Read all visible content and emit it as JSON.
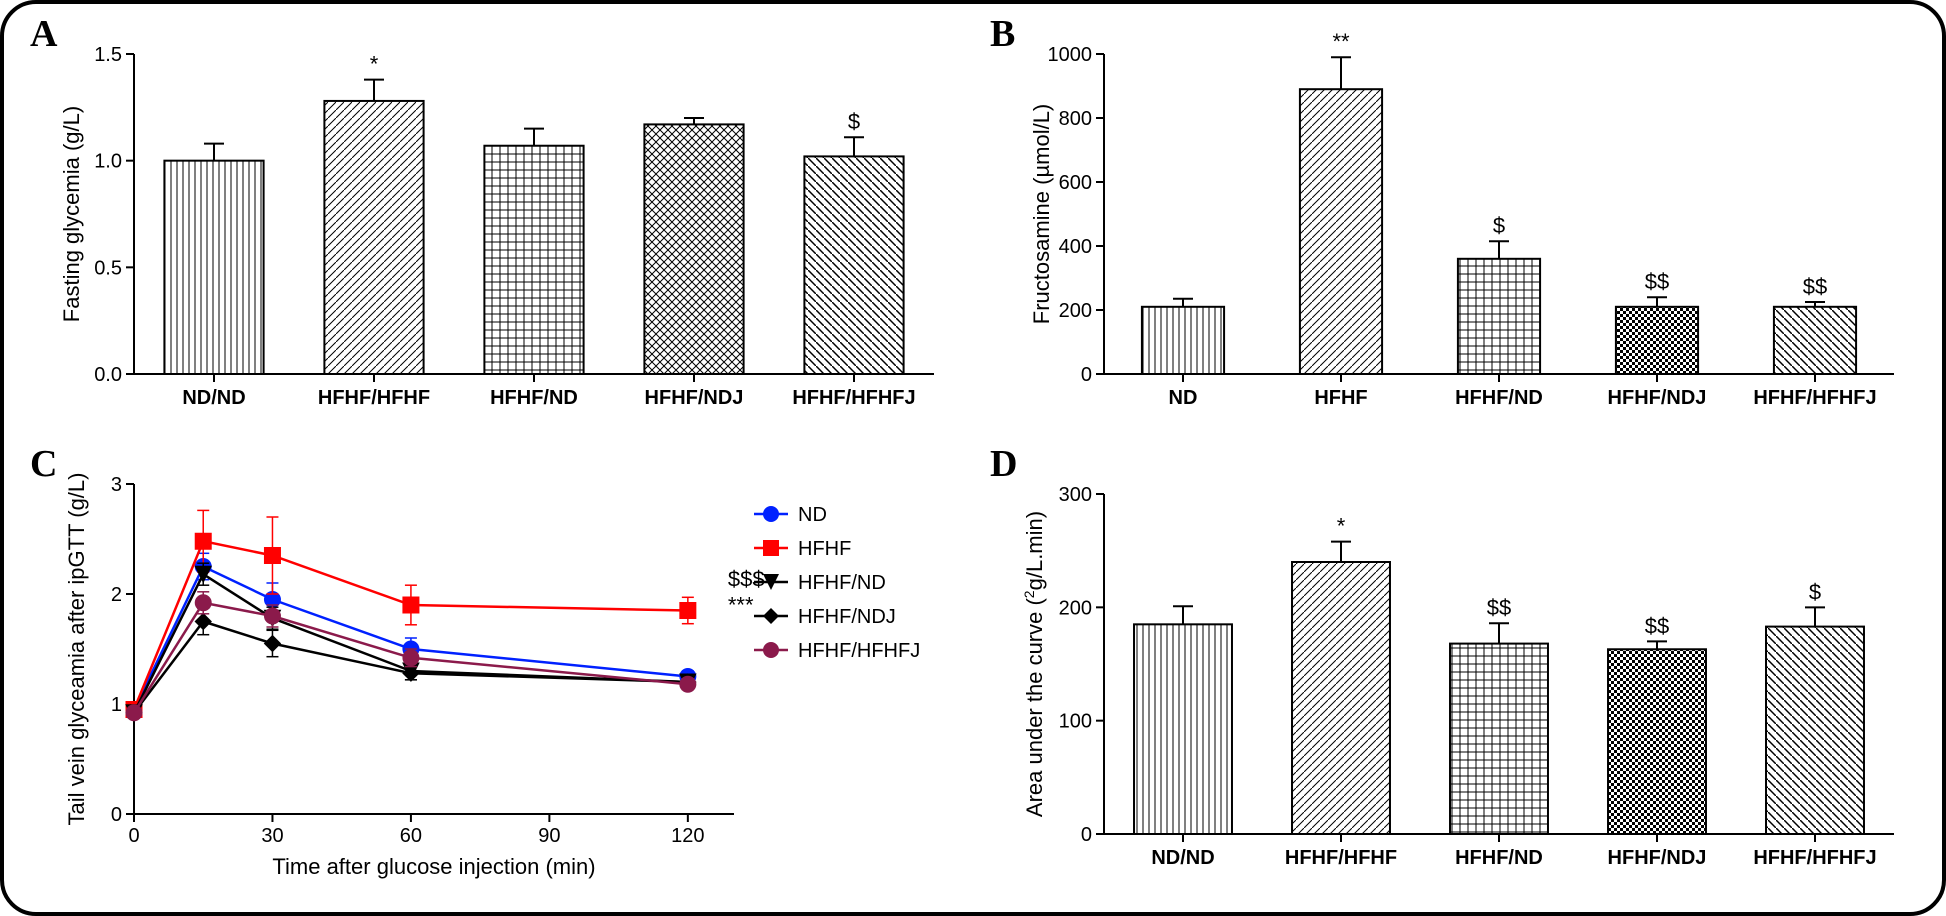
{
  "figure": {
    "background": "#ffffff",
    "border_color": "#000000",
    "border_radius": 36,
    "label_font": "Palatino Linotype, serif",
    "label_fontsize": 38,
    "axis_fontsize": 22,
    "tick_fontsize": 20,
    "sig_fontsize": 22
  },
  "panelA": {
    "label": "A",
    "type": "bar",
    "ylabel": "Fasting glycemia (g/L)",
    "ylim": [
      0,
      1.5
    ],
    "yticks": [
      0.0,
      0.5,
      1.0,
      1.5
    ],
    "ytick_labels": [
      "0.0",
      "0.5",
      "1.0",
      "1.5"
    ],
    "categories": [
      "ND/ND",
      "HFHF/HFHF",
      "HFHF/ND",
      "HFHF/NDJ",
      "HFHF/HFHFJ"
    ],
    "values": [
      1.0,
      1.28,
      1.07,
      1.17,
      1.02
    ],
    "errors": [
      0.08,
      0.1,
      0.08,
      0.03,
      0.09
    ],
    "sig": [
      "",
      "*",
      "",
      "",
      "$"
    ],
    "bar_width": 0.62,
    "bar_border": "#000000",
    "bar_fill": "#ffffff",
    "patterns": [
      "vert",
      "diag-ne",
      "grid",
      "check",
      "diag-nw"
    ],
    "error_cap": 10,
    "error_color": "#000000"
  },
  "panelB": {
    "label": "B",
    "type": "bar",
    "ylabel": "Fructosamine (µmol/L)",
    "ylim": [
      0,
      1000
    ],
    "yticks": [
      0,
      200,
      400,
      600,
      800,
      1000
    ],
    "ytick_labels": [
      "0",
      "200",
      "400",
      "600",
      "800",
      "1000"
    ],
    "categories": [
      "ND",
      "HFHF",
      "HFHF/ND",
      "HFHF/NDJ",
      "HFHF/HFHFJ"
    ],
    "values": [
      210,
      890,
      360,
      210,
      210
    ],
    "errors": [
      25,
      100,
      55,
      30,
      15
    ],
    "sig": [
      "",
      "**",
      "$",
      "$$",
      "$$"
    ],
    "bar_width": 0.52,
    "bar_border": "#000000",
    "bar_fill": "#ffffff",
    "patterns": [
      "vert",
      "diag-ne",
      "grid",
      "dots",
      "diag-nw"
    ],
    "error_cap": 10,
    "error_color": "#000000"
  },
  "panelC": {
    "label": "C",
    "type": "line",
    "xlabel": "Time after glucose injection (min)",
    "ylabel": "Tail vein glyceamia after ipGTT (g/L)",
    "xlim": [
      0,
      130
    ],
    "xticks": [
      0,
      30,
      60,
      90,
      120
    ],
    "xtick_labels": [
      "0",
      "30",
      "60",
      "90",
      "120"
    ],
    "ylim": [
      0,
      3
    ],
    "yticks": [
      0,
      1,
      2,
      3
    ],
    "ytick_labels": [
      "0",
      "1",
      "2",
      "3"
    ],
    "x": [
      0,
      15,
      30,
      60,
      120
    ],
    "series": [
      {
        "name": "ND",
        "color": "#0021ff",
        "marker": "circle",
        "y": [
          0.95,
          2.25,
          1.95,
          1.5,
          1.25
        ],
        "err": [
          0.0,
          0.12,
          0.15,
          0.1,
          0.05
        ]
      },
      {
        "name": "HFHF",
        "color": "#ff0000",
        "marker": "square",
        "y": [
          0.95,
          2.48,
          2.35,
          1.9,
          1.85
        ],
        "err": [
          0.0,
          0.28,
          0.35,
          0.18,
          0.12
        ]
      },
      {
        "name": "HFHF/ND",
        "color": "#000000",
        "marker": "triangle-down",
        "y": [
          0.92,
          2.18,
          1.78,
          1.3,
          1.2
        ],
        "err": [
          0.0,
          0.1,
          0.1,
          0.08,
          0.05
        ]
      },
      {
        "name": "HFHF/NDJ",
        "color": "#000000",
        "marker": "diamond",
        "y": [
          0.92,
          1.75,
          1.55,
          1.28,
          1.2
        ],
        "err": [
          0.0,
          0.12,
          0.12,
          0.06,
          0.05
        ]
      },
      {
        "name": "HFHF/HFHFJ",
        "color": "#8b1a4b",
        "marker": "circle",
        "y": [
          0.92,
          1.92,
          1.8,
          1.42,
          1.18
        ],
        "err": [
          0.0,
          0.1,
          0.1,
          0.08,
          0.05
        ]
      }
    ],
    "legend_pos": "right",
    "end_annotations": [
      "$$$",
      "***"
    ],
    "line_width": 2.5,
    "marker_size": 8
  },
  "panelD": {
    "label": "D",
    "type": "bar",
    "ylabel_lines": [
      "Area under the curve (",
      "2",
      "g/L.min)"
    ],
    "ylim": [
      0,
      300
    ],
    "yticks": [
      0,
      100,
      200,
      300
    ],
    "ytick_labels": [
      "0",
      "100",
      "200",
      "300"
    ],
    "categories": [
      "ND/ND",
      "HFHF/HFHF",
      "HFHF/ND",
      "HFHF/NDJ",
      "HFHF/HFHFJ"
    ],
    "values": [
      185,
      240,
      168,
      163,
      183
    ],
    "errors": [
      16,
      18,
      18,
      7,
      17
    ],
    "sig": [
      "",
      "*",
      "$$",
      "$$",
      "$"
    ],
    "bar_width": 0.62,
    "bar_border": "#000000",
    "bar_fill": "#ffffff",
    "patterns": [
      "vert",
      "diag-ne",
      "grid",
      "dots",
      "diag-nw"
    ],
    "error_cap": 10,
    "error_color": "#000000"
  }
}
